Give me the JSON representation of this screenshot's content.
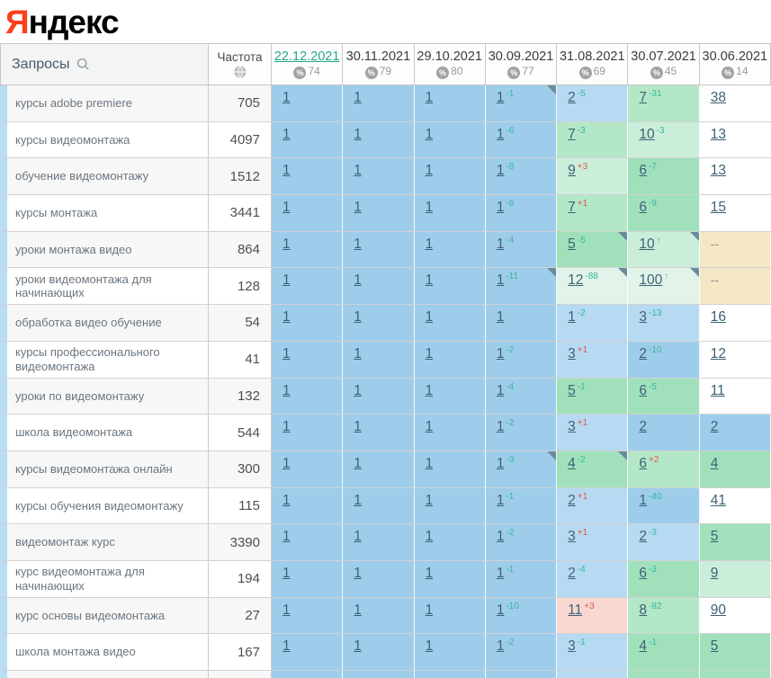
{
  "logo": {
    "ya": "Я",
    "rest": "ндекс"
  },
  "colors": {
    "blue1": "#9ecdeb",
    "blue2": "#b6daf1",
    "green1": "#a0e1bc",
    "green2": "#b4e7c8",
    "green3": "#cbeeda",
    "green4": "#e2f4e9",
    "beige": "#f4e7c3",
    "pink": "#f8d8d1",
    "white": "#ffffff",
    "accent_teal": "#26a690",
    "delta_improve": "#34b89c",
    "delta_worse": "#e2574d"
  },
  "table_header": {
    "queries_label": "Запросы",
    "frequency_label": "Частота",
    "percent_icon_glyph": "%",
    "dates": [
      {
        "label": "22.12.2021",
        "coverage": "74",
        "active": true
      },
      {
        "label": "30.11.2021",
        "coverage": "79",
        "active": false
      },
      {
        "label": "29.10.2021",
        "coverage": "80",
        "active": false
      },
      {
        "label": "30.09.2021",
        "coverage": "77",
        "active": false
      },
      {
        "label": "31.08.2021",
        "coverage": "69",
        "active": false
      },
      {
        "label": "30.07.2021",
        "coverage": "45",
        "active": false
      },
      {
        "label": "30.06.2021",
        "coverage": "14",
        "active": false
      }
    ]
  },
  "rows": [
    {
      "keyword": "курсы adobe premiere",
      "frequency": "705",
      "cells": [
        {
          "pos": "1",
          "bg": "blue1"
        },
        {
          "pos": "1",
          "bg": "blue1"
        },
        {
          "pos": "1",
          "bg": "blue1"
        },
        {
          "pos": "1",
          "delta": "-1",
          "bg": "blue1",
          "corner": true
        },
        {
          "pos": "2",
          "delta": "-5",
          "bg": "blue2"
        },
        {
          "pos": "7",
          "delta": "-31",
          "bg": "green2"
        },
        {
          "pos": "38",
          "bg": "white"
        }
      ]
    },
    {
      "keyword": "курсы видеомонтажа",
      "frequency": "4097",
      "cells": [
        {
          "pos": "1",
          "bg": "blue1"
        },
        {
          "pos": "1",
          "bg": "blue1"
        },
        {
          "pos": "1",
          "bg": "blue1"
        },
        {
          "pos": "1",
          "delta": "-6",
          "bg": "blue1"
        },
        {
          "pos": "7",
          "delta": "-3",
          "bg": "green2"
        },
        {
          "pos": "10",
          "delta": "-3",
          "bg": "green3"
        },
        {
          "pos": "13",
          "bg": "white"
        }
      ]
    },
    {
      "keyword": "обучение видеомонтажу",
      "frequency": "1512",
      "cells": [
        {
          "pos": "1",
          "bg": "blue1"
        },
        {
          "pos": "1",
          "bg": "blue1"
        },
        {
          "pos": "1",
          "bg": "blue1"
        },
        {
          "pos": "1",
          "delta": "-8",
          "bg": "blue1"
        },
        {
          "pos": "9",
          "delta": "+3",
          "bg": "green3"
        },
        {
          "pos": "6",
          "delta": "-7",
          "bg": "green1"
        },
        {
          "pos": "13",
          "bg": "white"
        }
      ]
    },
    {
      "keyword": "курсы монтажа",
      "frequency": "3441",
      "cells": [
        {
          "pos": "1",
          "bg": "blue1"
        },
        {
          "pos": "1",
          "bg": "blue1"
        },
        {
          "pos": "1",
          "bg": "blue1"
        },
        {
          "pos": "1",
          "delta": "-6",
          "bg": "blue1"
        },
        {
          "pos": "7",
          "delta": "+1",
          "bg": "green2"
        },
        {
          "pos": "6",
          "delta": "-9",
          "bg": "green1"
        },
        {
          "pos": "15",
          "bg": "white"
        }
      ]
    },
    {
      "keyword": "уроки монтажа видео",
      "frequency": "864",
      "cells": [
        {
          "pos": "1",
          "bg": "blue1"
        },
        {
          "pos": "1",
          "bg": "blue1"
        },
        {
          "pos": "1",
          "bg": "blue1"
        },
        {
          "pos": "1",
          "delta": "-4",
          "bg": "blue1"
        },
        {
          "pos": "5",
          "delta": "-5",
          "bg": "green1",
          "corner": true
        },
        {
          "pos": "10",
          "delta": "↑",
          "bg": "green3",
          "corner": true
        },
        {
          "pos": "--",
          "bg": "beige",
          "noRank": true
        }
      ]
    },
    {
      "keyword": "уроки видеомонтажа для начинающих",
      "frequency": "128",
      "cells": [
        {
          "pos": "1",
          "bg": "blue1"
        },
        {
          "pos": "1",
          "bg": "blue1"
        },
        {
          "pos": "1",
          "bg": "blue1"
        },
        {
          "pos": "1",
          "delta": "-11",
          "bg": "blue1",
          "corner": true
        },
        {
          "pos": "12",
          "delta": "-88",
          "bg": "green4",
          "corner": true
        },
        {
          "pos": "100",
          "delta": "↑",
          "bg": "green4",
          "corner": true
        },
        {
          "pos": "--",
          "bg": "beige",
          "noRank": true
        }
      ]
    },
    {
      "keyword": "обработка видео обучение",
      "frequency": "54",
      "cells": [
        {
          "pos": "1",
          "bg": "blue1"
        },
        {
          "pos": "1",
          "bg": "blue1"
        },
        {
          "pos": "1",
          "bg": "blue1"
        },
        {
          "pos": "1",
          "bg": "blue1"
        },
        {
          "pos": "1",
          "delta": "-2",
          "bg": "blue2"
        },
        {
          "pos": "3",
          "delta": "-13",
          "bg": "blue2"
        },
        {
          "pos": "16",
          "bg": "white"
        }
      ]
    },
    {
      "keyword": "курсы профессионального видеомонтажа",
      "frequency": "41",
      "cells": [
        {
          "pos": "1",
          "bg": "blue1"
        },
        {
          "pos": "1",
          "bg": "blue1"
        },
        {
          "pos": "1",
          "bg": "blue1"
        },
        {
          "pos": "1",
          "delta": "-2",
          "bg": "blue1"
        },
        {
          "pos": "3",
          "delta": "+1",
          "bg": "blue2"
        },
        {
          "pos": "2",
          "delta": "-10",
          "bg": "blue1"
        },
        {
          "pos": "12",
          "bg": "white"
        }
      ]
    },
    {
      "keyword": "уроки по видеомонтажу",
      "frequency": "132",
      "cells": [
        {
          "pos": "1",
          "bg": "blue1"
        },
        {
          "pos": "1",
          "bg": "blue1"
        },
        {
          "pos": "1",
          "bg": "blue1"
        },
        {
          "pos": "1",
          "delta": "-4",
          "bg": "blue1"
        },
        {
          "pos": "5",
          "delta": "-1",
          "bg": "green1"
        },
        {
          "pos": "6",
          "delta": "-5",
          "bg": "green1"
        },
        {
          "pos": "11",
          "bg": "white"
        }
      ]
    },
    {
      "keyword": "школа видеомонтажа",
      "frequency": "544",
      "cells": [
        {
          "pos": "1",
          "bg": "blue1"
        },
        {
          "pos": "1",
          "bg": "blue1"
        },
        {
          "pos": "1",
          "bg": "blue1"
        },
        {
          "pos": "1",
          "delta": "-2",
          "bg": "blue1"
        },
        {
          "pos": "3",
          "delta": "+1",
          "bg": "blue2"
        },
        {
          "pos": "2",
          "bg": "blue1"
        },
        {
          "pos": "2",
          "bg": "blue1"
        }
      ]
    },
    {
      "keyword": "курсы видеомонтажа онлайн",
      "frequency": "300",
      "cells": [
        {
          "pos": "1",
          "bg": "blue1"
        },
        {
          "pos": "1",
          "bg": "blue1"
        },
        {
          "pos": "1",
          "bg": "blue1"
        },
        {
          "pos": "1",
          "delta": "-3",
          "bg": "blue1",
          "corner": true
        },
        {
          "pos": "4",
          "delta": "-2",
          "bg": "green1",
          "corner": true
        },
        {
          "pos": "6",
          "delta": "+2",
          "bg": "green2"
        },
        {
          "pos": "4",
          "bg": "green1"
        }
      ]
    },
    {
      "keyword": "курсы обучения видеомонтажу",
      "frequency": "115",
      "cells": [
        {
          "pos": "1",
          "bg": "blue1"
        },
        {
          "pos": "1",
          "bg": "blue1"
        },
        {
          "pos": "1",
          "bg": "blue1"
        },
        {
          "pos": "1",
          "delta": "-1",
          "bg": "blue1"
        },
        {
          "pos": "2",
          "delta": "+1",
          "bg": "blue2"
        },
        {
          "pos": "1",
          "delta": "-40",
          "bg": "blue1"
        },
        {
          "pos": "41",
          "bg": "white"
        }
      ]
    },
    {
      "keyword": "видеомонтаж курс",
      "frequency": "3390",
      "cells": [
        {
          "pos": "1",
          "bg": "blue1"
        },
        {
          "pos": "1",
          "bg": "blue1"
        },
        {
          "pos": "1",
          "bg": "blue1"
        },
        {
          "pos": "1",
          "delta": "-2",
          "bg": "blue1"
        },
        {
          "pos": "3",
          "delta": "+1",
          "bg": "blue2"
        },
        {
          "pos": "2",
          "delta": "-3",
          "bg": "blue2"
        },
        {
          "pos": "5",
          "bg": "green1"
        }
      ]
    },
    {
      "keyword": "курс видеомонтажа для начинающих",
      "frequency": "194",
      "cells": [
        {
          "pos": "1",
          "bg": "blue1"
        },
        {
          "pos": "1",
          "bg": "blue1"
        },
        {
          "pos": "1",
          "bg": "blue1"
        },
        {
          "pos": "1",
          "delta": "-1",
          "bg": "blue1"
        },
        {
          "pos": "2",
          "delta": "-4",
          "bg": "blue2"
        },
        {
          "pos": "6",
          "delta": "-3",
          "bg": "green1"
        },
        {
          "pos": "9",
          "bg": "green3"
        }
      ]
    },
    {
      "keyword": "курс основы видеомонтажа",
      "frequency": "27",
      "cells": [
        {
          "pos": "1",
          "bg": "blue1"
        },
        {
          "pos": "1",
          "bg": "blue1"
        },
        {
          "pos": "1",
          "bg": "blue1"
        },
        {
          "pos": "1",
          "delta": "-10",
          "bg": "blue1"
        },
        {
          "pos": "11",
          "delta": "+3",
          "bg": "pink"
        },
        {
          "pos": "8",
          "delta": "-82",
          "bg": "green2"
        },
        {
          "pos": "90",
          "bg": "white"
        }
      ]
    },
    {
      "keyword": "школа монтажа видео",
      "frequency": "167",
      "cells": [
        {
          "pos": "1",
          "bg": "blue1"
        },
        {
          "pos": "1",
          "bg": "blue1"
        },
        {
          "pos": "1",
          "bg": "blue1"
        },
        {
          "pos": "1",
          "delta": "-2",
          "bg": "blue1"
        },
        {
          "pos": "3",
          "delta": "-1",
          "bg": "blue2"
        },
        {
          "pos": "4",
          "delta": "-1",
          "bg": "green1"
        },
        {
          "pos": "5",
          "bg": "green1"
        }
      ]
    }
  ],
  "peek_row": {
    "kw_bg": "#f7f7f7",
    "freq_bg": "#f7f7f7",
    "cells": [
      "blue1",
      "blue1",
      "blue1",
      "blue1",
      "blue2",
      "green1",
      "green1"
    ]
  }
}
